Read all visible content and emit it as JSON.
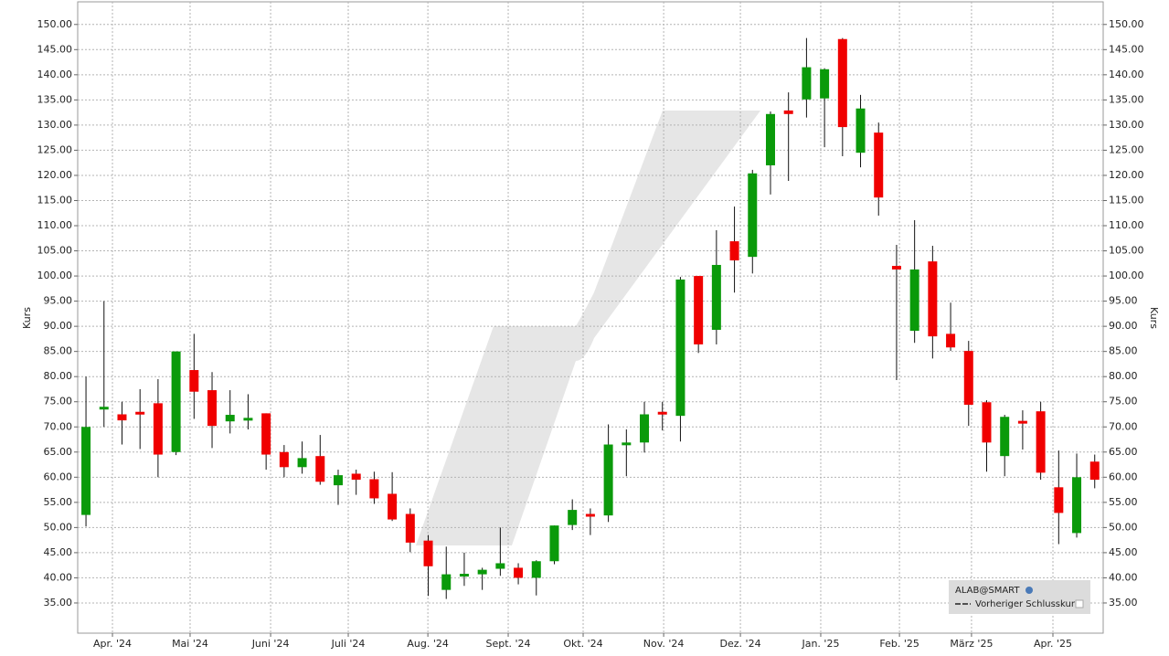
{
  "chart_data": {
    "type": "candlestick",
    "ylabel": "Kurs",
    "y2label": "Kurs",
    "legend": {
      "title": "ALAB@SMART",
      "items": [
        "Vorheriger Schlusskurs"
      ]
    },
    "legend_position": "lower right",
    "grid": true,
    "up_color": "#0a9a0a",
    "down_color": "#f00000",
    "ylim": [
      29,
      154.5
    ],
    "yticks": [
      {
        "value": 35,
        "label": "35.00"
      },
      {
        "value": 40,
        "label": "40.00"
      },
      {
        "value": 45,
        "label": "45.00"
      },
      {
        "value": 50,
        "label": "50.00"
      },
      {
        "value": 55,
        "label": "55.00"
      },
      {
        "value": 60,
        "label": "60.00"
      },
      {
        "value": 65,
        "label": "65.00"
      },
      {
        "value": 70,
        "label": "70.00"
      },
      {
        "value": 75,
        "label": "75.00"
      },
      {
        "value": 80,
        "label": "80.00"
      },
      {
        "value": 85,
        "label": "85.00"
      },
      {
        "value": 90,
        "label": "90.00"
      },
      {
        "value": 95,
        "label": "95.00"
      },
      {
        "value": 100,
        "label": "100.00"
      },
      {
        "value": 105,
        "label": "105.00"
      },
      {
        "value": 110,
        "label": "110.00"
      },
      {
        "value": 115,
        "label": "115.00"
      },
      {
        "value": 120,
        "label": "120.00"
      },
      {
        "value": 125,
        "label": "125.00"
      },
      {
        "value": 130,
        "label": "130.00"
      },
      {
        "value": 135,
        "label": "135.00"
      },
      {
        "value": 140,
        "label": "140.00"
      },
      {
        "value": 145,
        "label": "145.00"
      },
      {
        "value": 150,
        "label": "150.00"
      }
    ],
    "xlim": [
      -0.46,
      56.47
    ],
    "xticks": [
      {
        "value": 1.47,
        "label": "Apr. '24"
      },
      {
        "value": 5.78,
        "label": "Mai '24"
      },
      {
        "value": 10.25,
        "label": "Juni '24"
      },
      {
        "value": 14.56,
        "label": "Juli '24"
      },
      {
        "value": 18.98,
        "label": "Aug. '24"
      },
      {
        "value": 23.44,
        "label": "Sept. '24"
      },
      {
        "value": 27.6,
        "label": "Okt. '24"
      },
      {
        "value": 32.07,
        "label": "Nov. '24"
      },
      {
        "value": 36.33,
        "label": "Dez. '24"
      },
      {
        "value": 40.79,
        "label": "Jan. '25"
      },
      {
        "value": 45.16,
        "label": "Feb. '25"
      },
      {
        "value": 49.16,
        "label": "März '25"
      },
      {
        "value": 53.68,
        "label": "Apr. '25"
      }
    ],
    "open": [
      52.5,
      73.5,
      72.5,
      73,
      74.7,
      65,
      81.3,
      77.3,
      71.1,
      71.3,
      72.7,
      65,
      62,
      64.2,
      58.4,
      60.7,
      59.6,
      56.7,
      52.7,
      47.4,
      37.6,
      40.6,
      40.7,
      41.8,
      42,
      40,
      43.3,
      50.5,
      52.7,
      52.4,
      66.5,
      66.9,
      73,
      72.2,
      100,
      89.3,
      106.9,
      103.8,
      122,
      132.9,
      135.1,
      135.3,
      147.1,
      124.5,
      128.5,
      102,
      89.1,
      102.9,
      88.5,
      85.1,
      74.9,
      64.2,
      71.2,
      73.1,
      58,
      48.9,
      63.1
    ],
    "high": [
      80,
      95,
      75,
      77.5,
      79.5,
      85,
      88.5,
      80.9,
      77.3,
      76.5,
      72.7,
      66.4,
      67.1,
      68.4,
      61.5,
      61.5,
      61.1,
      61,
      53.8,
      48.5,
      46.2,
      45,
      42,
      50,
      42.9,
      43.5,
      50.4,
      55.6,
      53.8,
      70.5,
      69.5,
      75,
      75,
      99.8,
      100,
      109.1,
      113.8,
      121.1,
      132.7,
      136.5,
      147.3,
      141.3,
      147.3,
      136,
      130.5,
      106.2,
      111.1,
      106,
      94.7,
      87.1,
      75.3,
      72.4,
      73.3,
      75,
      65.3,
      64.7,
      64.5
    ],
    "low": [
      50.2,
      70,
      66.5,
      65.6,
      60,
      64.4,
      71.6,
      65.8,
      68.7,
      69.5,
      61.5,
      60,
      60.7,
      58.5,
      54.5,
      56.5,
      54.7,
      51.3,
      45.1,
      36.4,
      35.8,
      38.4,
      37.6,
      40.4,
      38.7,
      36.5,
      42.7,
      49.5,
      48.5,
      51.1,
      60.2,
      64.9,
      69.3,
      67.1,
      84.7,
      86.4,
      96.7,
      100.5,
      116.2,
      118.9,
      131.5,
      125.6,
      123.8,
      121.6,
      112,
      79.3,
      86.7,
      83.6,
      85.1,
      70.2,
      61.1,
      60.2,
      65.5,
      59.5,
      46.7,
      48,
      57.8
    ],
    "close": [
      70,
      74,
      71.3,
      72.7,
      64.5,
      85,
      77,
      70.2,
      72.4,
      71.8,
      64.5,
      62,
      63.8,
      59.1,
      60.4,
      59.5,
      55.8,
      51.6,
      47,
      42.3,
      40.7,
      40.8,
      41.6,
      42.9,
      40,
      43.3,
      50.4,
      53.5,
      52.3,
      66.5,
      66.9,
      72.5,
      72.7,
      99.3,
      86.4,
      102.2,
      103.1,
      120.4,
      132.2,
      132.2,
      141.5,
      141.1,
      129.6,
      133.3,
      115.6,
      101.3,
      101.3,
      88,
      85.8,
      74.4,
      66.9,
      72,
      71,
      60.9,
      52.9,
      60,
      59.5
    ]
  }
}
